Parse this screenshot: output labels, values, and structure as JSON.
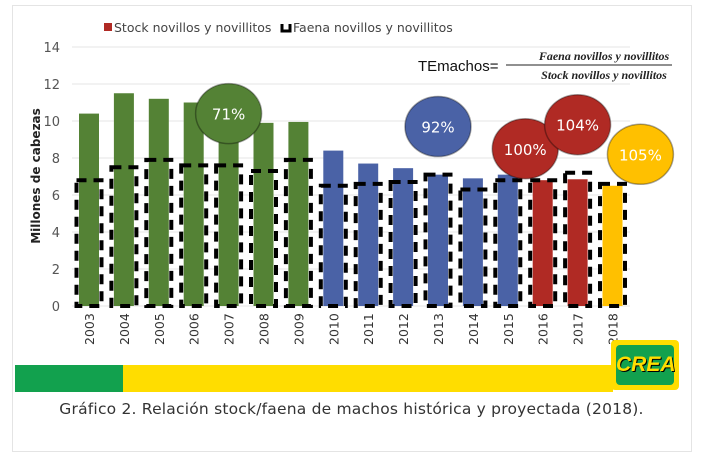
{
  "chart_data": {
    "type": "bar",
    "title": "",
    "ylabel": "Millones de cabezas",
    "xlabel": "",
    "ylim": [
      0,
      14
    ],
    "yticks": [
      "0",
      "2",
      "4",
      "6",
      "8",
      "10",
      "12",
      "14"
    ],
    "categories": [
      "2003",
      "2004",
      "2005",
      "2006",
      "2007",
      "2008",
      "2009",
      "2010",
      "2011",
      "2012",
      "2013",
      "2014",
      "2015",
      "2016",
      "2017",
      "2018"
    ],
    "series": [
      {
        "name": "Stock novillos y novillitos",
        "values": [
          10.4,
          11.5,
          11.2,
          11.0,
          10.6,
          9.9,
          9.95,
          8.4,
          7.7,
          7.45,
          7.1,
          6.9,
          7.1,
          6.8,
          6.85,
          6.5
        ]
      },
      {
        "name": "Faena novillos y novillitos",
        "values": [
          6.8,
          7.5,
          7.9,
          7.6,
          7.6,
          7.3,
          7.9,
          6.5,
          6.6,
          6.7,
          7.1,
          6.3,
          6.8,
          6.8,
          7.2,
          6.6
        ]
      }
    ],
    "bar_colors": [
      "#548235",
      "#548235",
      "#548235",
      "#548235",
      "#548235",
      "#548235",
      "#548235",
      "#4a62a6",
      "#4a62a6",
      "#4a62a6",
      "#4a62a6",
      "#4a62a6",
      "#4a62a6",
      "#b02a24",
      "#b02a24",
      "#ffc000"
    ],
    "legend": {
      "placement": "top",
      "stock_color": "#b02a24",
      "faena_color": "#000000"
    },
    "formula": {
      "lhs": "TEmachos=",
      "numerator": "Faena novillos y novillitos",
      "denominator": "Stock novillos y novillitos"
    },
    "annotations": [
      {
        "text": "71%",
        "year": "2007",
        "level": 10.4,
        "fill": "#548235"
      },
      {
        "text": "92%",
        "year": "2013",
        "level": 9.7,
        "fill": "#4a62a6"
      },
      {
        "text": "100%",
        "year": "2015.5",
        "level": 8.5,
        "fill": "#b02a24"
      },
      {
        "text": "104%",
        "year": "2017",
        "level": 9.8,
        "fill": "#b02a24"
      },
      {
        "text": "105%",
        "year": "2018.8",
        "level": 8.2,
        "fill": "#ffc000"
      }
    ]
  },
  "caption": "Gráfico 2. Relación stock/faena de machos histórica y proyectada (2018).",
  "logo_text": "CREA"
}
